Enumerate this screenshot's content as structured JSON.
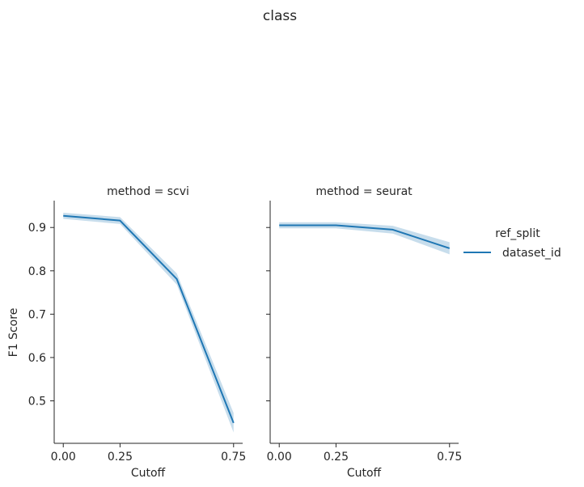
{
  "chart_data": {
    "type": "line",
    "title": "class",
    "xlabel": "Cutoff",
    "ylabel": "F1 Score",
    "x_ticks": [
      "0.00",
      "0.25",
      "0.75"
    ],
    "y_ticks": [
      "0.5",
      "0.6",
      "0.7",
      "0.8",
      "0.9"
    ],
    "xlim": [
      -0.04,
      0.79
    ],
    "ylim": [
      0.402,
      0.962
    ],
    "legend": {
      "title": "ref_split",
      "position": "right",
      "entries": [
        {
          "name": "dataset_id",
          "color": "#1f77b4"
        }
      ]
    },
    "panels": [
      {
        "title": "method = scvi",
        "series": [
          {
            "name": "dataset_id",
            "color": "#1f77b4",
            "x": [
              0.0,
              0.25,
              0.5,
              0.75
            ],
            "y": [
              0.927,
              0.916,
              0.781,
              0.449
            ],
            "ci_low": [
              0.92,
              0.908,
              0.768,
              0.427
            ],
            "ci_high": [
              0.934,
              0.924,
              0.794,
              0.472
            ]
          }
        ]
      },
      {
        "title": "method = seurat",
        "series": [
          {
            "name": "dataset_id",
            "color": "#1f77b4",
            "x": [
              0.0,
              0.25,
              0.5,
              0.75
            ],
            "y": [
              0.905,
              0.905,
              0.895,
              0.852
            ],
            "ci_low": [
              0.898,
              0.898,
              0.886,
              0.838
            ],
            "ci_high": [
              0.912,
              0.912,
              0.904,
              0.866
            ]
          }
        ]
      }
    ]
  }
}
